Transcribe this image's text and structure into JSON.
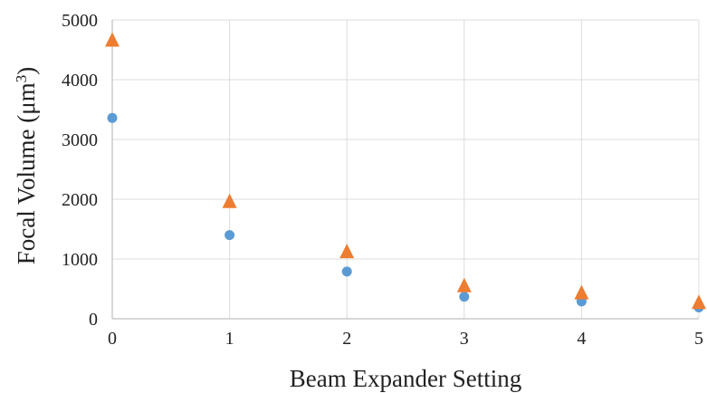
{
  "chart_data": {
    "type": "scatter",
    "title": "",
    "xlabel": "Beam Expander Setting",
    "ylabel_prefix": "Focal Volume (μm",
    "ylabel_exp": "3",
    "ylabel_suffix": ")",
    "xlim": [
      0,
      5
    ],
    "ylim": [
      0,
      5000
    ],
    "x_ticks": [
      0,
      1,
      2,
      3,
      4,
      5
    ],
    "y_ticks": [
      0,
      1000,
      2000,
      3000,
      4000,
      5000
    ],
    "grid": true,
    "legend": "none",
    "series": [
      {
        "marker": "circle",
        "color": "#5b9bd5",
        "x": [
          0,
          1,
          2,
          3,
          4,
          5
        ],
        "y": [
          3360,
          1400,
          790,
          370,
          290,
          190
        ]
      },
      {
        "marker": "triangle",
        "color": "#ed7d31",
        "x": [
          0,
          1,
          2,
          3,
          4,
          5
        ],
        "y": [
          4650,
          1950,
          1110,
          540,
          420,
          260
        ]
      }
    ]
  }
}
